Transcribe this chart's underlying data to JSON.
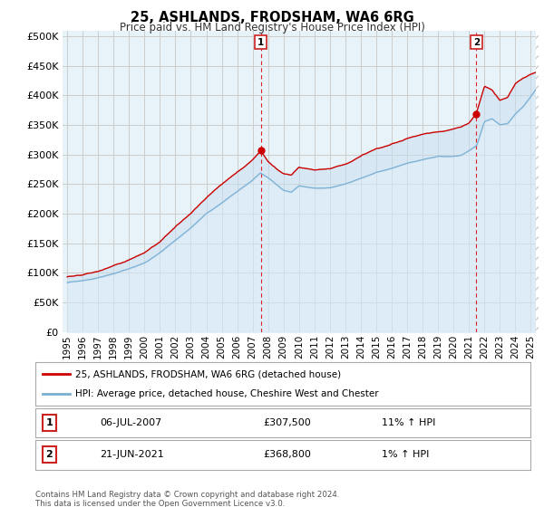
{
  "title": "25, ASHLANDS, FRODSHAM, WA6 6RG",
  "subtitle": "Price paid vs. HM Land Registry's House Price Index (HPI)",
  "ytick_values": [
    0,
    50000,
    100000,
    150000,
    200000,
    250000,
    300000,
    350000,
    400000,
    450000,
    500000
  ],
  "ylim": [
    0,
    510000
  ],
  "xlim_start": 1994.7,
  "xlim_end": 2025.5,
  "transaction1": {
    "label": "1",
    "date": "06-JUL-2007",
    "price": 307500,
    "hpi_change": "11% ↑ HPI",
    "x": 2007.52
  },
  "transaction2": {
    "label": "2",
    "date": "21-JUN-2021",
    "price": 368800,
    "hpi_change": "1% ↑ HPI",
    "x": 2021.47
  },
  "legend_line1": "25, ASHLANDS, FRODSHAM, WA6 6RG (detached house)",
  "legend_line2": "HPI: Average price, detached house, Cheshire West and Chester",
  "footer": "Contains HM Land Registry data © Crown copyright and database right 2024.\nThis data is licensed under the Open Government Licence v3.0.",
  "line_color_property": "#cc0000",
  "line_color_hpi": "#7aafd4",
  "fill_color_hpi": "#d6e8f5",
  "vline_color": "#dd2222",
  "background_color": "#ffffff",
  "grid_color": "#cccccc",
  "table_border_color": "#aaaaaa",
  "badge_color": "#cc2222",
  "hatch_color": "#cccccc"
}
